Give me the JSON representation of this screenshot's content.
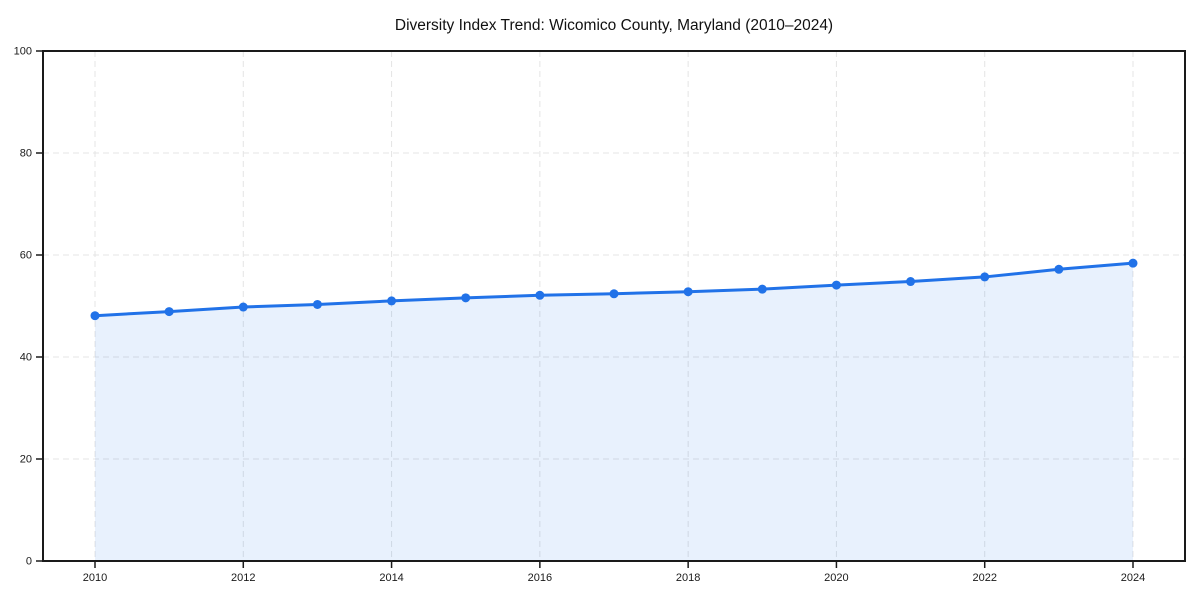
{
  "chart_data": {
    "type": "area",
    "title": "Diversity Index Trend: Wicomico County, Maryland (2010–2024)",
    "x": [
      2010,
      2011,
      2012,
      2013,
      2014,
      2015,
      2016,
      2017,
      2018,
      2019,
      2020,
      2021,
      2022,
      2023,
      2024
    ],
    "series": [
      {
        "name": "Diversity Index",
        "values": [
          48.1,
          48.9,
          49.8,
          50.3,
          51.0,
          51.6,
          52.1,
          52.4,
          52.8,
          53.3,
          54.1,
          54.8,
          55.7,
          57.2,
          58.4
        ]
      }
    ],
    "xlabel": "",
    "ylabel": "",
    "xlim": [
      2010,
      2024
    ],
    "ylim": [
      0,
      100
    ],
    "xticks": [
      2010,
      2012,
      2014,
      2016,
      2018,
      2020,
      2022,
      2024
    ],
    "yticks": [
      0,
      20,
      40,
      60,
      80,
      100
    ],
    "grid": "dashed, every 2 years horizontal / every 20 units vertical",
    "legend": "none",
    "colors": {
      "line": "#2172e8",
      "marker": "#2172e8",
      "area_fill": "rgba(33,114,232,0.10)",
      "gridline": "#e4e4e4",
      "axis_frame": "#1a1a1a",
      "tick_text": "#1a1a1a",
      "title_text": "#111111",
      "background": "#ffffff"
    }
  }
}
